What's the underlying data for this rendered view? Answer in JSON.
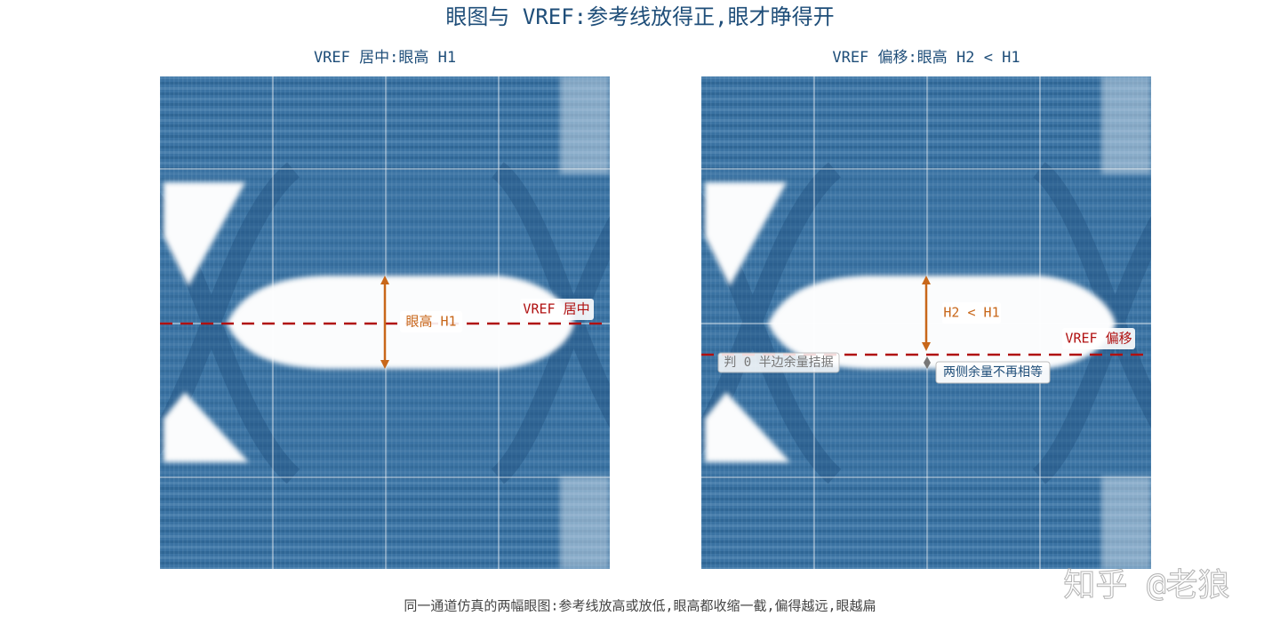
{
  "title": "眼图与 VREF:参考线放得正,眼才睁得开",
  "panels": [
    {
      "title": "VREF 居中:眼高 H1",
      "annotations": [
        "眼高 H1",
        "VREF 居中"
      ]
    },
    {
      "title": "VREF 偏移:眼高 H2 < H1",
      "annotations": [
        "H2 < H1",
        "VREF 偏移",
        "判 0 半边余量拮据",
        "两侧余量不再相等"
      ]
    }
  ],
  "caption": "同一通道仿真的两幅眼图:参考线放高或放低,眼高都收缩一截,偏得越远,眼越扁",
  "watermark": "知乎 @老狼"
}
